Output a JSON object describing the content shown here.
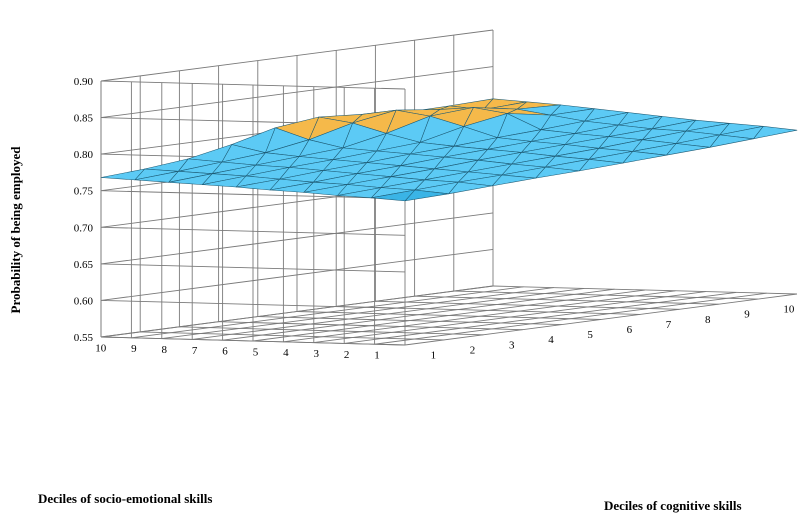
{
  "chart_data": {
    "type": "surface3d",
    "title": "",
    "zlabel": "Probability of being employed",
    "xlabel": "Deciles of cognitive skills",
    "ylabel": "Deciles of socio-emotional skills",
    "z_ticks": [
      "0.55",
      "0.60",
      "0.65",
      "0.70",
      "0.75",
      "0.80",
      "0.85",
      "0.90"
    ],
    "zlim": [
      0.55,
      0.9
    ],
    "x_ticks": [
      "1",
      "2",
      "3",
      "4",
      "5",
      "6",
      "7",
      "8",
      "9",
      "10"
    ],
    "y_ticks": [
      "1",
      "2",
      "3",
      "4",
      "5",
      "6",
      "7",
      "8",
      "9",
      "10"
    ],
    "band_colors": {
      "0.70-0.75": "#3ab4e6",
      "0.75-0.80": "#5ccaf5",
      "0.80-0.85": "#f5b94a"
    },
    "grid": true,
    "legend": "none",
    "note": "rows indexed by socio-emotional decile 1..10; columns by cognitive decile 1..10",
    "z": [
      [
        0.747,
        0.749,
        0.752,
        0.755,
        0.757,
        0.76,
        0.763,
        0.766,
        0.77,
        0.774
      ],
      [
        0.75,
        0.753,
        0.756,
        0.758,
        0.761,
        0.764,
        0.767,
        0.77,
        0.774,
        0.778
      ],
      [
        0.752,
        0.755,
        0.758,
        0.761,
        0.764,
        0.767,
        0.77,
        0.774,
        0.778,
        0.781
      ],
      [
        0.755,
        0.758,
        0.761,
        0.764,
        0.768,
        0.771,
        0.774,
        0.777,
        0.78,
        0.784
      ],
      [
        0.757,
        0.76,
        0.764,
        0.767,
        0.771,
        0.774,
        0.777,
        0.78,
        0.784,
        0.788
      ],
      [
        0.76,
        0.763,
        0.767,
        0.77,
        0.774,
        0.777,
        0.781,
        0.784,
        0.788,
        0.792
      ],
      [
        0.762,
        0.766,
        0.77,
        0.773,
        0.777,
        0.781,
        0.795,
        0.805,
        0.795,
        0.796
      ],
      [
        0.764,
        0.768,
        0.772,
        0.776,
        0.78,
        0.792,
        0.808,
        0.812,
        0.802,
        0.8
      ],
      [
        0.766,
        0.77,
        0.775,
        0.78,
        0.79,
        0.805,
        0.815,
        0.808,
        0.8,
        0.803
      ],
      [
        0.768,
        0.772,
        0.778,
        0.79,
        0.805,
        0.812,
        0.808,
        0.803,
        0.804,
        0.806
      ]
    ]
  }
}
